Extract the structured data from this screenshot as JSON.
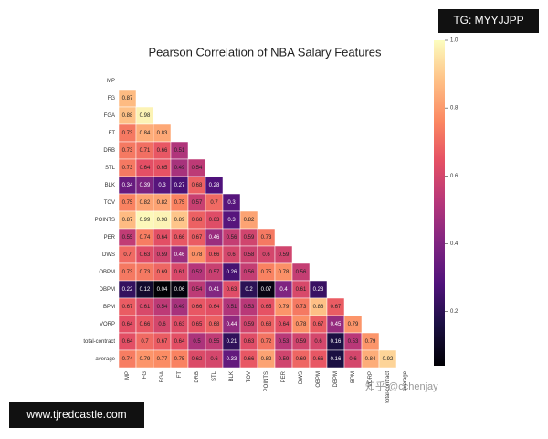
{
  "chart_data": {
    "type": "heatmap",
    "title": "Pearson Correlation of NBA Salary Features",
    "labels": [
      "MP",
      "FG",
      "FGA",
      "FT",
      "DRB",
      "STL",
      "BLK",
      "TOV",
      "POINTS",
      "PER",
      "DWS",
      "OBPM",
      "DBPM",
      "BPM",
      "VORP",
      "total-contract",
      "average"
    ],
    "values": [
      [],
      [
        0.87
      ],
      [
        0.88,
        0.98
      ],
      [
        0.73,
        0.84,
        0.83
      ],
      [
        0.73,
        0.71,
        0.66,
        0.51
      ],
      [
        0.73,
        0.64,
        0.65,
        0.49,
        0.54
      ],
      [
        0.34,
        0.39,
        0.3,
        0.27,
        0.68,
        0.28
      ],
      [
        0.75,
        0.82,
        0.82,
        0.75,
        0.57,
        0.7,
        0.3
      ],
      [
        0.87,
        0.99,
        0.98,
        0.89,
        0.68,
        0.63,
        0.3,
        0.82
      ],
      [
        0.55,
        0.74,
        0.64,
        0.66,
        0.67,
        0.46,
        0.56,
        0.59,
        0.73
      ],
      [
        0.7,
        0.63,
        0.59,
        0.46,
        0.78,
        0.66,
        0.6,
        0.58,
        0.6,
        0.59
      ],
      [
        0.73,
        0.73,
        0.69,
        0.61,
        0.52,
        0.57,
        0.26,
        0.56,
        0.75,
        0.78,
        0.56
      ],
      [
        0.22,
        0.12,
        0.04,
        0.06,
        0.54,
        0.41,
        0.63,
        0.2,
        0.07,
        0.4,
        0.61,
        0.23
      ],
      [
        0.67,
        0.61,
        0.54,
        0.49,
        0.66,
        0.64,
        0.51,
        0.53,
        0.65,
        0.79,
        0.73,
        0.88,
        0.67
      ],
      [
        0.64,
        0.66,
        0.6,
        0.63,
        0.65,
        0.68,
        0.44,
        0.59,
        0.68,
        0.64,
        0.78,
        0.67,
        0.45,
        0.79
      ],
      [
        0.64,
        0.7,
        0.67,
        0.64,
        0.5,
        0.55,
        0.21,
        0.63,
        0.72,
        0.53,
        0.59,
        0.6,
        0.16,
        0.53,
        0.79
      ],
      [
        0.74,
        0.79,
        0.77,
        0.75,
        0.62,
        0.6,
        0.33,
        0.66,
        0.82,
        0.59,
        0.69,
        0.66,
        0.16,
        0.6,
        0.84,
        0.92
      ]
    ],
    "colormap": "magma",
    "colorbar_lim": [
      0.04,
      1
    ],
    "colorbar_ticks": [
      0.2,
      0.4,
      0.6,
      0.8,
      {
        "value": 1,
        "label": "1.0"
      }
    ]
  },
  "watermarks": {
    "top_right": "TG: MYYJJPP",
    "bottom_left": "www.tjredcastle.com",
    "credit": "知乎 @cchenjay"
  }
}
